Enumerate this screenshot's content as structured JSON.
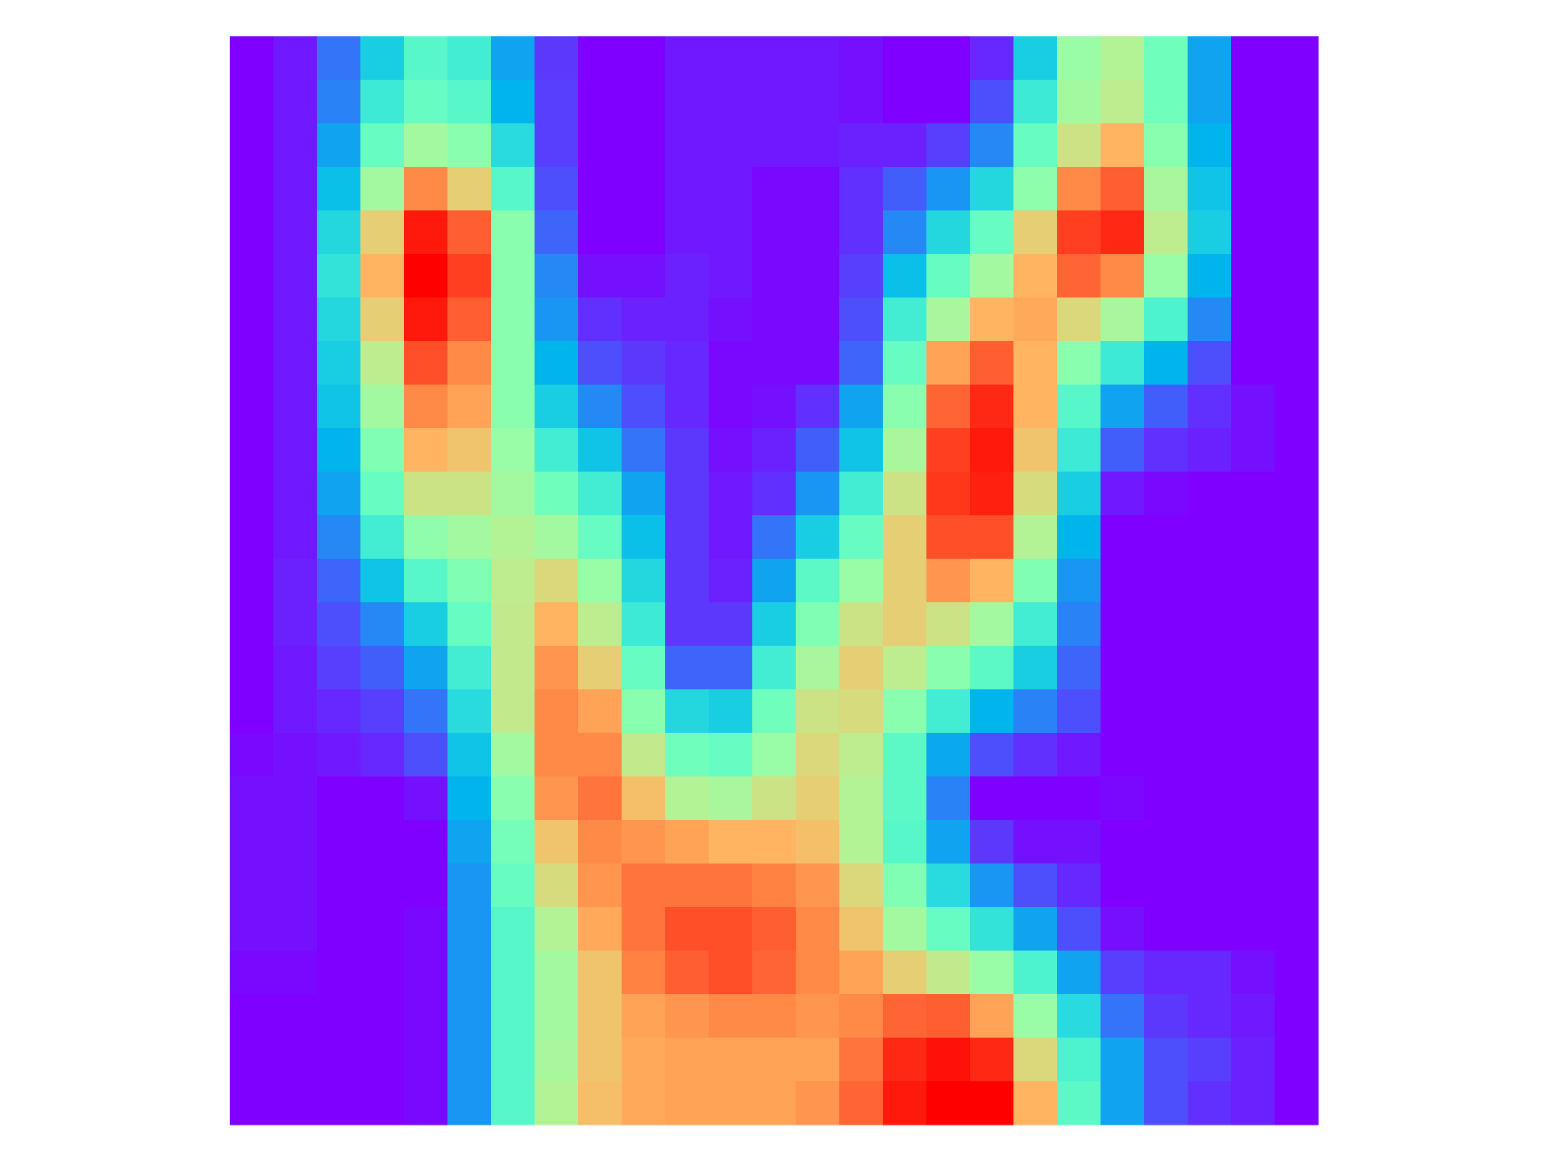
{
  "chart_data": {
    "type": "heatmap",
    "colormap": "rainbow",
    "zlim": [
      0,
      1
    ],
    "z": [
      [
        0,
        0.03,
        0.15,
        0.3,
        0.42,
        0.38,
        0.22,
        0.07,
        0,
        0,
        0.03,
        0.03,
        0.03,
        0.03,
        0.02,
        0,
        0,
        0.05,
        0.3,
        0.55,
        0.6,
        0.47,
        0.22,
        0,
        0
      ],
      [
        0,
        0.03,
        0.17,
        0.37,
        0.45,
        0.42,
        0.25,
        0.08,
        0,
        0,
        0.03,
        0.03,
        0.03,
        0.03,
        0.02,
        0,
        0,
        0.1,
        0.37,
        0.57,
        0.62,
        0.47,
        0.22,
        0,
        0
      ],
      [
        0,
        0.03,
        0.22,
        0.45,
        0.57,
        0.52,
        0.33,
        0.08,
        0,
        0,
        0.03,
        0.03,
        0.03,
        0.03,
        0.04,
        0.04,
        0.08,
        0.18,
        0.45,
        0.65,
        0.75,
        0.52,
        0.25,
        0,
        0
      ],
      [
        0,
        0.03,
        0.27,
        0.57,
        0.82,
        0.7,
        0.42,
        0.1,
        0,
        0,
        0.03,
        0.03,
        0.01,
        0.01,
        0.06,
        0.12,
        0.2,
        0.32,
        0.53,
        0.82,
        0.88,
        0.58,
        0.28,
        0,
        0
      ],
      [
        0,
        0.03,
        0.32,
        0.7,
        0.97,
        0.88,
        0.52,
        0.13,
        0,
        0,
        0.03,
        0.03,
        0.01,
        0.01,
        0.06,
        0.18,
        0.32,
        0.45,
        0.7,
        0.92,
        0.95,
        0.62,
        0.3,
        0,
        0
      ],
      [
        0,
        0.03,
        0.35,
        0.75,
        1.0,
        0.92,
        0.52,
        0.18,
        0.02,
        0.02,
        0.04,
        0.03,
        0.01,
        0.01,
        0.08,
        0.27,
        0.45,
        0.57,
        0.75,
        0.87,
        0.82,
        0.55,
        0.25,
        0,
        0
      ],
      [
        0,
        0.03,
        0.32,
        0.7,
        0.97,
        0.88,
        0.52,
        0.2,
        0.06,
        0.04,
        0.04,
        0.02,
        0.01,
        0.01,
        0.1,
        0.38,
        0.58,
        0.75,
        0.77,
        0.68,
        0.58,
        0.4,
        0.18,
        0,
        0
      ],
      [
        0,
        0.03,
        0.3,
        0.62,
        0.9,
        0.82,
        0.52,
        0.25,
        0.1,
        0.07,
        0.05,
        0.01,
        0.01,
        0.01,
        0.13,
        0.45,
        0.78,
        0.88,
        0.75,
        0.52,
        0.37,
        0.25,
        0.1,
        0,
        0
      ],
      [
        0,
        0.03,
        0.28,
        0.57,
        0.82,
        0.78,
        0.52,
        0.3,
        0.18,
        0.1,
        0.05,
        0.01,
        0.02,
        0.06,
        0.22,
        0.52,
        0.87,
        0.95,
        0.75,
        0.42,
        0.22,
        0.12,
        0.06,
        0.02,
        0
      ],
      [
        0,
        0.03,
        0.25,
        0.5,
        0.75,
        0.72,
        0.55,
        0.38,
        0.28,
        0.15,
        0.07,
        0.02,
        0.04,
        0.12,
        0.28,
        0.58,
        0.92,
        0.97,
        0.72,
        0.37,
        0.12,
        0.06,
        0.04,
        0.02,
        0
      ],
      [
        0,
        0.03,
        0.22,
        0.45,
        0.65,
        0.65,
        0.57,
        0.47,
        0.38,
        0.22,
        0.07,
        0.03,
        0.06,
        0.2,
        0.38,
        0.65,
        0.93,
        0.96,
        0.67,
        0.3,
        0.03,
        0.01,
        0,
        0,
        0
      ],
      [
        0,
        0.03,
        0.18,
        0.38,
        0.53,
        0.57,
        0.6,
        0.57,
        0.45,
        0.27,
        0.07,
        0.03,
        0.15,
        0.3,
        0.45,
        0.7,
        0.9,
        0.9,
        0.6,
        0.25,
        0,
        0,
        0,
        0,
        0
      ],
      [
        0,
        0.04,
        0.13,
        0.28,
        0.42,
        0.5,
        0.62,
        0.68,
        0.55,
        0.32,
        0.07,
        0.04,
        0.22,
        0.43,
        0.55,
        0.7,
        0.8,
        0.75,
        0.5,
        0.2,
        0,
        0,
        0,
        0,
        0
      ],
      [
        0,
        0.04,
        0.1,
        0.18,
        0.3,
        0.45,
        0.63,
        0.75,
        0.62,
        0.37,
        0.07,
        0.07,
        0.3,
        0.5,
        0.65,
        0.7,
        0.65,
        0.57,
        0.38,
        0.17,
        0,
        0,
        0,
        0,
        0
      ],
      [
        0,
        0.03,
        0.08,
        0.12,
        0.22,
        0.38,
        0.63,
        0.8,
        0.7,
        0.45,
        0.13,
        0.13,
        0.38,
        0.58,
        0.7,
        0.62,
        0.52,
        0.43,
        0.3,
        0.13,
        0,
        0,
        0,
        0,
        0
      ],
      [
        0,
        0.03,
        0.05,
        0.08,
        0.15,
        0.33,
        0.63,
        0.82,
        0.78,
        0.52,
        0.32,
        0.3,
        0.47,
        0.65,
        0.67,
        0.52,
        0.38,
        0.25,
        0.17,
        0.1,
        0,
        0,
        0,
        0,
        0
      ],
      [
        0.01,
        0.02,
        0.03,
        0.05,
        0.1,
        0.28,
        0.57,
        0.82,
        0.82,
        0.63,
        0.47,
        0.45,
        0.55,
        0.68,
        0.62,
        0.43,
        0.23,
        0.1,
        0.06,
        0.03,
        0,
        0,
        0,
        0,
        0
      ],
      [
        0.02,
        0.02,
        0,
        0,
        0.02,
        0.25,
        0.52,
        0.8,
        0.85,
        0.73,
        0.6,
        0.58,
        0.65,
        0.7,
        0.6,
        0.43,
        0.17,
        0,
        0,
        0,
        0.01,
        0,
        0,
        0,
        0
      ],
      [
        0.02,
        0.02,
        0,
        0,
        0,
        0.22,
        0.48,
        0.72,
        0.82,
        0.8,
        0.78,
        0.75,
        0.75,
        0.73,
        0.6,
        0.42,
        0.22,
        0.07,
        0.02,
        0.02,
        0,
        0,
        0,
        0,
        0
      ],
      [
        0.02,
        0.02,
        0,
        0,
        0,
        0.2,
        0.45,
        0.67,
        0.8,
        0.85,
        0.85,
        0.85,
        0.83,
        0.8,
        0.68,
        0.5,
        0.33,
        0.2,
        0.1,
        0.05,
        0,
        0,
        0,
        0,
        0
      ],
      [
        0.02,
        0.02,
        0,
        0,
        0.01,
        0.2,
        0.42,
        0.6,
        0.77,
        0.85,
        0.9,
        0.9,
        0.88,
        0.82,
        0.72,
        0.57,
        0.45,
        0.35,
        0.22,
        0.1,
        0.02,
        0,
        0,
        0,
        0
      ],
      [
        0.01,
        0.01,
        0,
        0,
        0.01,
        0.2,
        0.42,
        0.57,
        0.72,
        0.83,
        0.88,
        0.9,
        0.87,
        0.82,
        0.78,
        0.7,
        0.63,
        0.55,
        0.4,
        0.22,
        0.08,
        0.05,
        0.05,
        0.02,
        0
      ],
      [
        0,
        0,
        0,
        0,
        0.01,
        0.2,
        0.42,
        0.57,
        0.72,
        0.78,
        0.8,
        0.82,
        0.82,
        0.8,
        0.82,
        0.87,
        0.88,
        0.78,
        0.55,
        0.33,
        0.15,
        0.07,
        0.05,
        0.03,
        0
      ],
      [
        0,
        0,
        0,
        0,
        0.01,
        0.2,
        0.42,
        0.58,
        0.72,
        0.77,
        0.78,
        0.78,
        0.78,
        0.78,
        0.85,
        0.95,
        0.98,
        0.95,
        0.68,
        0.4,
        0.22,
        0.1,
        0.08,
        0.04,
        0
      ],
      [
        0,
        0,
        0,
        0,
        0.01,
        0.2,
        0.42,
        0.6,
        0.73,
        0.77,
        0.78,
        0.78,
        0.78,
        0.8,
        0.87,
        0.97,
        1.0,
        1.0,
        0.75,
        0.43,
        0.22,
        0.1,
        0.06,
        0.04,
        0
      ]
    ]
  }
}
